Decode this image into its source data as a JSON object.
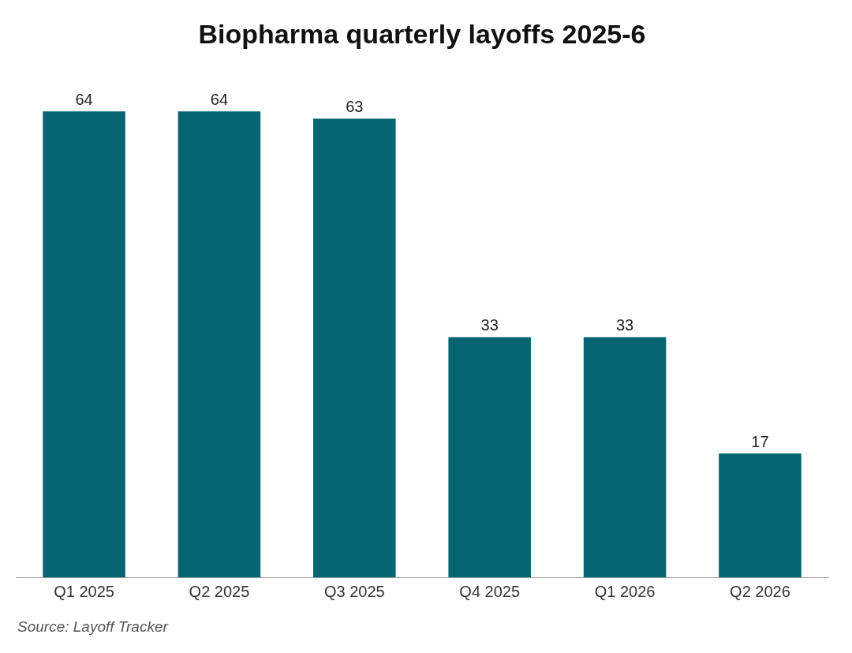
{
  "chart_data": {
    "type": "bar",
    "title": "Biopharma quarterly layoffs 2025-6",
    "categories": [
      "Q1 2025",
      "Q2 2025",
      "Q3 2025",
      "Q4 2025",
      "Q1 2026",
      "Q2 2026"
    ],
    "values": [
      64,
      64,
      63,
      33,
      33,
      17
    ],
    "color": "#066570",
    "data_labels": true,
    "annotations": [
      "Source: Layoff Tracker"
    ]
  }
}
